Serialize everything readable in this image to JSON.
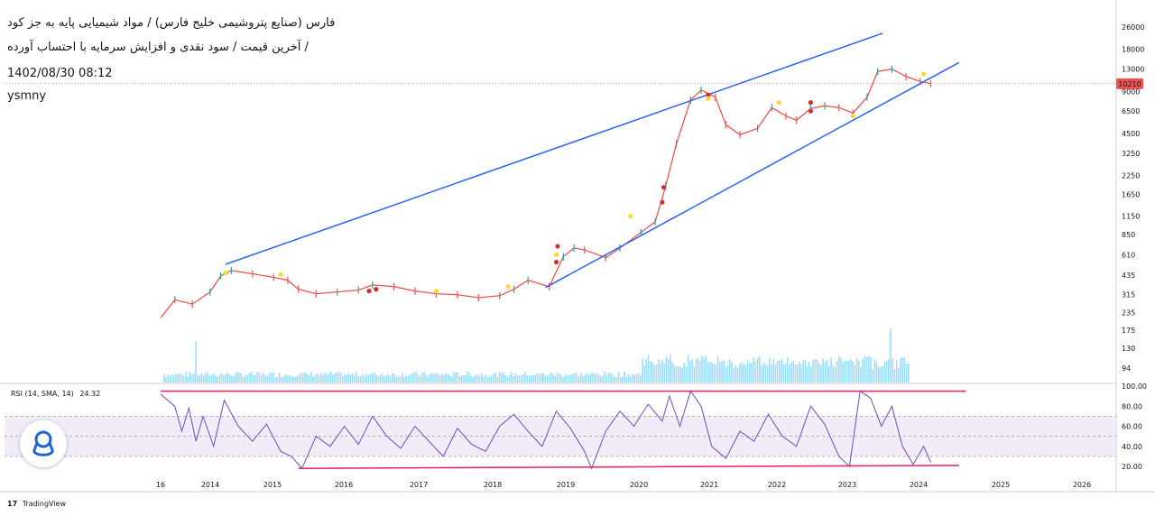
{
  "header": {
    "line1": "فارس (صنایع پتروشیمی خلیج فارس) / مواد شیمیایی پایه به جز کود",
    "line2": "آخرین قیمت / سود نقدی و افزایش سرمایه با احتساب آورده /",
    "line3": "1402/08/30 08:12",
    "line4": "ysmny"
  },
  "rsi": {
    "legend": "RSI (14, SMA, 14)",
    "value": "24.32",
    "levels": [
      "100.00",
      "80.00",
      "60.00",
      "40.00",
      "20.00"
    ]
  },
  "brand": {
    "logo": "17",
    "name": "TradingView"
  },
  "current_price_label": "10210",
  "colors": {
    "up": "#26a69a",
    "down": "#ef5350",
    "trend": "#2962ff",
    "rsi_line": "#7e57c2",
    "rsi_band": "#ede7f6",
    "rsi_bound": "#e91e63",
    "marker_red": "#d32f2f",
    "marker_yellow": "#fdd835",
    "volume": "#4fc3f7"
  },
  "chart_data": [
    {
      "type": "line",
      "scale": "log",
      "x_ticks": [
        "16",
        "2014",
        "2015",
        "2016",
        "2017",
        "2018",
        "2019",
        "2020",
        "2021",
        "2022",
        "2023",
        "2024",
        "2025",
        "2026"
      ],
      "y_ticks": [
        26000,
        18000,
        13000,
        9000,
        6500,
        4500,
        3250,
        2250,
        1650,
        1150,
        850,
        610,
        435,
        315,
        235,
        175,
        130,
        94
      ],
      "series": [
        {
          "values": [
            [
              2013.0,
              215
            ],
            [
              2013.2,
              290
            ],
            [
              2013.45,
              270
            ],
            [
              2013.7,
              330
            ],
            [
              2013.85,
              430
            ],
            [
              2014.0,
              470
            ],
            [
              2014.3,
              445
            ],
            [
              2014.6,
              420
            ],
            [
              2014.8,
              400
            ],
            [
              2014.95,
              345
            ],
            [
              2015.2,
              320
            ],
            [
              2015.5,
              330
            ],
            [
              2015.8,
              340
            ],
            [
              2016.0,
              370
            ],
            [
              2016.3,
              360
            ],
            [
              2016.6,
              335
            ],
            [
              2016.9,
              320
            ],
            [
              2017.2,
              315
            ],
            [
              2017.5,
              300
            ],
            [
              2017.8,
              310
            ],
            [
              2018.0,
              345
            ],
            [
              2018.2,
              400
            ],
            [
              2018.5,
              360
            ],
            [
              2018.7,
              590
            ],
            [
              2018.85,
              680
            ],
            [
              2019.0,
              660
            ],
            [
              2019.3,
              580
            ],
            [
              2019.5,
              680
            ],
            [
              2019.8,
              880
            ],
            [
              2020.0,
              1050
            ],
            [
              2020.15,
              1900
            ],
            [
              2020.3,
              3800
            ],
            [
              2020.5,
              7800
            ],
            [
              2020.65,
              9200
            ],
            [
              2020.85,
              8200
            ],
            [
              2021.0,
              5200
            ],
            [
              2021.2,
              4400
            ],
            [
              2021.45,
              4900
            ],
            [
              2021.65,
              6900
            ],
            [
              2021.85,
              6000
            ],
            [
              2022.0,
              5600
            ],
            [
              2022.2,
              6800
            ],
            [
              2022.4,
              7100
            ],
            [
              2022.6,
              6900
            ],
            [
              2022.8,
              6300
            ],
            [
              2023.0,
              8200
            ],
            [
              2023.15,
              12500
            ],
            [
              2023.35,
              13000
            ],
            [
              2023.55,
              11500
            ],
            [
              2023.75,
              10600
            ],
            [
              2023.9,
              10210
            ]
          ]
        }
      ],
      "trendlines": [
        {
          "from": [
            2013.92,
            520
          ],
          "to": [
            2023.22,
            23500
          ]
        },
        {
          "from": [
            2018.45,
            355
          ],
          "to": [
            2024.3,
            14500
          ]
        }
      ],
      "markers": [
        {
          "x": 2013.92,
          "y": 450,
          "color": "yellow"
        },
        {
          "x": 2014.7,
          "y": 440,
          "color": "yellow"
        },
        {
          "x": 2016.05,
          "y": 345,
          "color": "red"
        },
        {
          "x": 2015.95,
          "y": 335,
          "color": "red"
        },
        {
          "x": 2016.9,
          "y": 335,
          "color": "yellow"
        },
        {
          "x": 2017.92,
          "y": 360,
          "color": "yellow"
        },
        {
          "x": 2018.6,
          "y": 540,
          "color": "red"
        },
        {
          "x": 2018.6,
          "y": 610,
          "color": "yellow"
        },
        {
          "x": 2018.62,
          "y": 700,
          "color": "red"
        },
        {
          "x": 2019.65,
          "y": 1150,
          "color": "yellow"
        },
        {
          "x": 2020.1,
          "y": 1450,
          "color": "red"
        },
        {
          "x": 2020.12,
          "y": 1850,
          "color": "red"
        },
        {
          "x": 2020.75,
          "y": 8500,
          "color": "red"
        },
        {
          "x": 2020.75,
          "y": 8000,
          "color": "yellow"
        },
        {
          "x": 2021.75,
          "y": 7500,
          "color": "yellow"
        },
        {
          "x": 2022.2,
          "y": 7500,
          "color": "red"
        },
        {
          "x": 2022.2,
          "y": 6500,
          "color": "red"
        },
        {
          "x": 2022.8,
          "y": 6000,
          "color": "yellow"
        },
        {
          "x": 2023.8,
          "y": 12000,
          "color": "yellow"
        }
      ]
    },
    {
      "type": "line",
      "x_ticks": [
        "16",
        "2014",
        "2015",
        "2016",
        "2017",
        "2018",
        "2019",
        "2020",
        "2021",
        "2022",
        "2023",
        "2024",
        "2025",
        "2026"
      ],
      "ylim": [
        10,
        100
      ],
      "levels": [
        70,
        50,
        30
      ],
      "series": [
        {
          "values": [
            [
              2013.0,
              92
            ],
            [
              2013.2,
              80
            ],
            [
              2013.3,
              55
            ],
            [
              2013.4,
              78
            ],
            [
              2013.5,
              45
            ],
            [
              2013.6,
              70
            ],
            [
              2013.75,
              40
            ],
            [
              2013.9,
              86
            ],
            [
              2014.1,
              60
            ],
            [
              2014.3,
              45
            ],
            [
              2014.5,
              62
            ],
            [
              2014.7,
              35
            ],
            [
              2014.85,
              30
            ],
            [
              2015.0,
              18
            ],
            [
              2015.2,
              50
            ],
            [
              2015.4,
              40
            ],
            [
              2015.6,
              60
            ],
            [
              2015.8,
              42
            ],
            [
              2016.0,
              70
            ],
            [
              2016.2,
              50
            ],
            [
              2016.4,
              38
            ],
            [
              2016.6,
              60
            ],
            [
              2016.8,
              45
            ],
            [
              2017.0,
              30
            ],
            [
              2017.2,
              58
            ],
            [
              2017.4,
              42
            ],
            [
              2017.6,
              35
            ],
            [
              2017.8,
              60
            ],
            [
              2018.0,
              72
            ],
            [
              2018.2,
              55
            ],
            [
              2018.4,
              40
            ],
            [
              2018.6,
              75
            ],
            [
              2018.8,
              58
            ],
            [
              2019.0,
              35
            ],
            [
              2019.1,
              18
            ],
            [
              2019.3,
              55
            ],
            [
              2019.5,
              75
            ],
            [
              2019.7,
              60
            ],
            [
              2019.9,
              82
            ],
            [
              2020.1,
              65
            ],
            [
              2020.2,
              90
            ],
            [
              2020.35,
              60
            ],
            [
              2020.5,
              95
            ],
            [
              2020.65,
              80
            ],
            [
              2020.8,
              40
            ],
            [
              2021.0,
              28
            ],
            [
              2021.2,
              55
            ],
            [
              2021.4,
              45
            ],
            [
              2021.6,
              72
            ],
            [
              2021.8,
              50
            ],
            [
              2022.0,
              40
            ],
            [
              2022.2,
              80
            ],
            [
              2022.4,
              62
            ],
            [
              2022.6,
              30
            ],
            [
              2022.75,
              20
            ],
            [
              2022.9,
              95
            ],
            [
              2023.05,
              88
            ],
            [
              2023.2,
              60
            ],
            [
              2023.35,
              80
            ],
            [
              2023.5,
              40
            ],
            [
              2023.65,
              22
            ],
            [
              2023.8,
              40
            ],
            [
              2023.9,
              24
            ]
          ]
        }
      ],
      "bounds": [
        {
          "from": [
            2013.0,
            95
          ],
          "to": [
            2024.4,
            95
          ]
        },
        {
          "from": [
            2014.95,
            18
          ],
          "to": [
            2024.3,
            21
          ]
        }
      ]
    }
  ]
}
